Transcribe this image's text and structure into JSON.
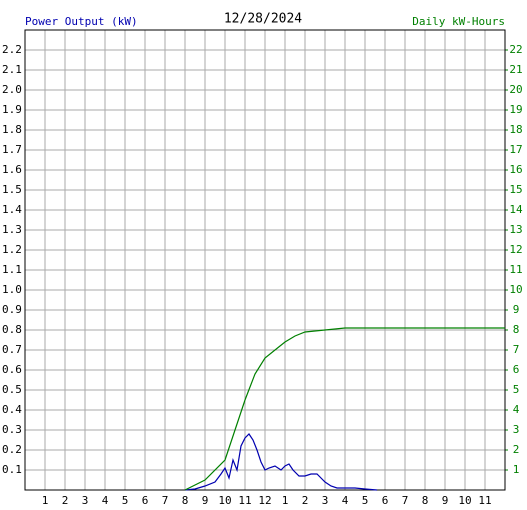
{
  "chart_data": {
    "type": "line",
    "title": "12/28/2024",
    "y_label": "Power Output (kW)",
    "y2_label": "Daily kW-Hours",
    "grid": true,
    "xlim": [
      0,
      24
    ],
    "xticks": [
      1,
      2,
      3,
      4,
      5,
      6,
      7,
      8,
      9,
      10,
      11,
      12,
      {
        "value": 13,
        "label": "1"
      },
      {
        "value": 14,
        "label": "2"
      },
      {
        "value": 15,
        "label": "3"
      },
      {
        "value": 16,
        "label": "4"
      },
      {
        "value": 17,
        "label": "5"
      },
      {
        "value": 18,
        "label": "6"
      },
      {
        "value": 19,
        "label": "7"
      },
      {
        "value": 20,
        "label": "8"
      },
      {
        "value": 21,
        "label": "9"
      },
      {
        "value": 22,
        "label": "10"
      },
      {
        "value": 23,
        "label": "11"
      }
    ],
    "ylim": [
      0,
      2.3
    ],
    "yticks": [
      0.1,
      0.2,
      0.3,
      0.4,
      0.5,
      0.6,
      0.7,
      0.8,
      0.9,
      {
        "value": 1,
        "label": "1.0"
      },
      1.1,
      1.2,
      1.3,
      1.4,
      1.5,
      1.6,
      1.7,
      1.8,
      1.9,
      {
        "value": 2,
        "label": "2.0"
      },
      2.1,
      2.2
    ],
    "y2lim": [
      0,
      23
    ],
    "y2ticks": [
      1,
      2,
      3,
      4,
      5,
      6,
      7,
      8,
      9,
      10,
      11,
      12,
      13,
      14,
      15,
      16,
      17,
      18,
      19,
      20,
      21,
      22
    ],
    "series": [
      {
        "name": "Power Output (kW)",
        "color": "#0000b0",
        "x": [
          8.0,
          8.5,
          9.0,
          9.5,
          9.8,
          10.0,
          10.2,
          10.4,
          10.6,
          10.8,
          11.0,
          11.2,
          11.4,
          11.6,
          11.8,
          12.0,
          12.2,
          12.5,
          12.8,
          13.0,
          13.2,
          13.4,
          13.7,
          14.0,
          14.3,
          14.6,
          14.8,
          15.0,
          15.3,
          15.6,
          16.0,
          16.5,
          17.0,
          17.6
        ],
        "values": [
          0,
          0.005,
          0.02,
          0.04,
          0.08,
          0.11,
          0.06,
          0.15,
          0.1,
          0.22,
          0.26,
          0.28,
          0.25,
          0.2,
          0.14,
          0.1,
          0.11,
          0.12,
          0.1,
          0.12,
          0.13,
          0.1,
          0.07,
          0.07,
          0.08,
          0.08,
          0.06,
          0.04,
          0.02,
          0.01,
          0.01,
          0.01,
          0.005,
          0
        ]
      },
      {
        "name": "Daily kW-Hours",
        "color": "#008000",
        "axis": "y2",
        "x": [
          8,
          9,
          10,
          10.5,
          11,
          11.5,
          12,
          12.5,
          13,
          13.5,
          14,
          15,
          16,
          24
        ],
        "values": [
          0,
          0.5,
          1.5,
          3.0,
          4.5,
          5.8,
          6.6,
          7.0,
          7.4,
          7.7,
          7.9,
          8.0,
          8.1,
          8.1
        ]
      }
    ]
  }
}
